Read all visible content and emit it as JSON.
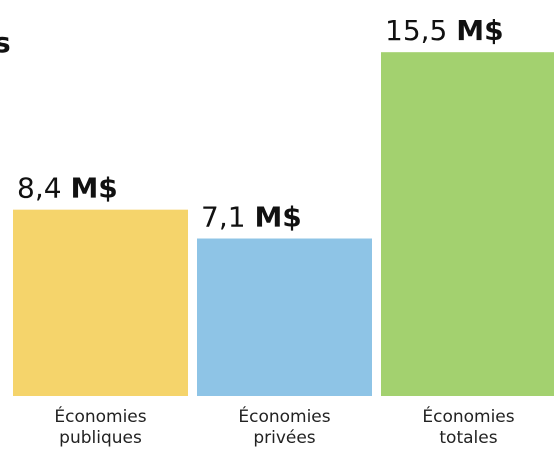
{
  "chart_data": {
    "type": "bar",
    "title_fragment": "s",
    "categories": [
      [
        "Économies",
        "publiques"
      ],
      [
        "Économies",
        "privées"
      ],
      [
        "Économies",
        "totales"
      ]
    ],
    "values": [
      8.4,
      7.1,
      15.5
    ],
    "value_numbers": [
      "8,4",
      "7,1",
      "15,5"
    ],
    "value_unit": "M$",
    "colors": [
      "#f5d46b",
      "#8ec4e6",
      "#a3d16f"
    ],
    "ylim": [
      0,
      16.5
    ],
    "grid": false,
    "legend": "none"
  }
}
